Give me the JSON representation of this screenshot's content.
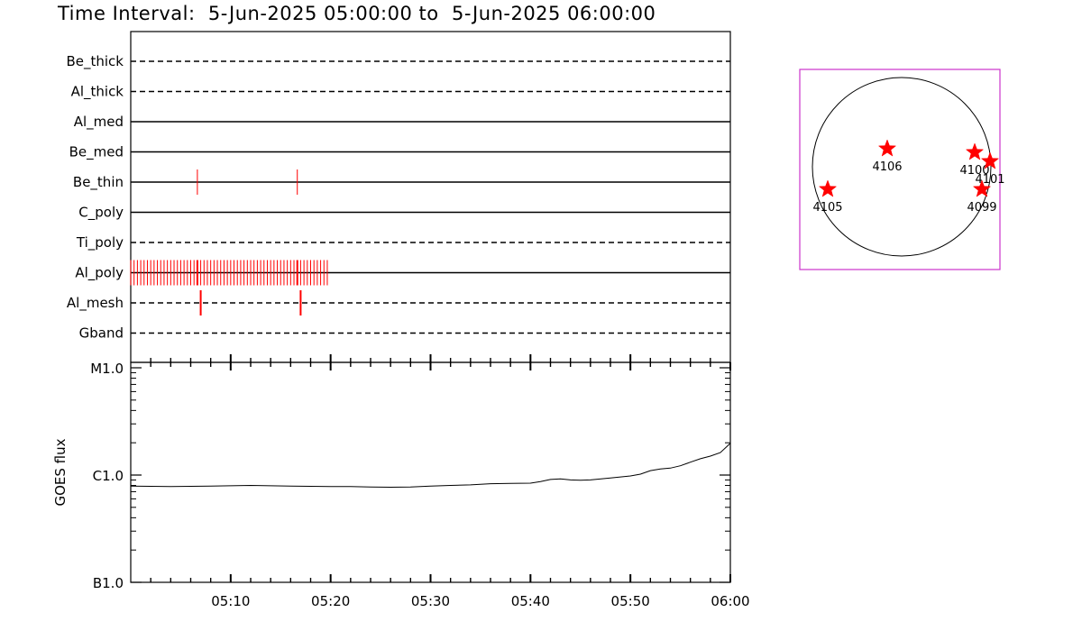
{
  "title": "Time Interval:  5-Jun-2025 05:00:00 to  5-Jun-2025 06:00:00",
  "colors": {
    "events": "#ff0000",
    "axes": "#000000",
    "context_box": "#cc33cc",
    "background": "#ffffff"
  },
  "chart_data": [
    {
      "type": "timeline",
      "x_range": [
        "05:00:00",
        "06:00:00"
      ],
      "rows": [
        {
          "label": "Be_thick",
          "style": "dashed",
          "marks": []
        },
        {
          "label": "Al_thick",
          "style": "dashed",
          "marks": []
        },
        {
          "label": "Al_med",
          "style": "solid",
          "marks": []
        },
        {
          "label": "Be_med",
          "style": "solid",
          "marks": []
        },
        {
          "label": "Be_thin",
          "style": "solid",
          "marks": [
            "05:06:40",
            "05:16:40"
          ]
        },
        {
          "label": "C_poly",
          "style": "solid",
          "marks": []
        },
        {
          "label": "Ti_poly",
          "style": "dashed",
          "marks": []
        },
        {
          "label": "Al_poly",
          "style": "solid",
          "marks": {
            "start": "05:00:00",
            "end": "05:19:50",
            "step_seconds": 20,
            "emphasized": [
              "05:06:40",
              "05:16:40"
            ]
          }
        },
        {
          "label": "Al_mesh",
          "style": "dashed",
          "marks": [
            "05:07:00",
            "05:17:00"
          ]
        },
        {
          "label": "Gband",
          "style": "dashed",
          "marks": []
        }
      ],
      "grid": false
    },
    {
      "type": "line",
      "ylabel": "GOES flux",
      "y_scale": "log",
      "y_ticks": [
        "B1.0",
        "C1.0",
        "M1.0"
      ],
      "y_tick_values": [
        1e-07,
        1e-06,
        1e-05
      ],
      "ylim": [
        1e-07,
        1e-05
      ],
      "x_range": [
        "05:00",
        "06:00"
      ],
      "x_ticks": [
        "05:10",
        "05:20",
        "05:30",
        "05:40",
        "05:50",
        "06:00"
      ],
      "series": [
        {
          "x": [
            "05:00",
            "05:02",
            "05:04",
            "05:06",
            "05:08",
            "05:10",
            "05:12",
            "05:14",
            "05:16",
            "05:18",
            "05:20",
            "05:22",
            "05:24",
            "05:26",
            "05:28",
            "05:30",
            "05:32",
            "05:34",
            "05:36",
            "05:38",
            "05:40",
            "05:41",
            "05:42",
            "05:43",
            "05:44",
            "05:45",
            "05:46",
            "05:48",
            "05:50",
            "05:51",
            "05:52",
            "05:53",
            "05:54",
            "05:55",
            "05:56",
            "05:57",
            "05:58",
            "05:59",
            "06:00"
          ],
          "values": [
            7.9e-07,
            7.85e-07,
            7.8e-07,
            7.85e-07,
            7.9e-07,
            7.95e-07,
            8e-07,
            7.95e-07,
            7.9e-07,
            7.85e-07,
            7.8e-07,
            7.8e-07,
            7.75e-07,
            7.7e-07,
            7.75e-07,
            7.9e-07,
            8e-07,
            8.1e-07,
            8.3e-07,
            8.35e-07,
            8.4e-07,
            8.7e-07,
            9.1e-07,
            9.2e-07,
            9e-07,
            8.95e-07,
            9e-07,
            9.4e-07,
            9.8e-07,
            1.02e-06,
            1.1e-06,
            1.14e-06,
            1.16e-06,
            1.22e-06,
            1.32e-06,
            1.42e-06,
            1.5e-06,
            1.62e-06,
            1.98e-06
          ]
        }
      ]
    },
    {
      "type": "scatter",
      "description_of_panel": "solar disk context map",
      "points": [
        {
          "label": "4106"
        },
        {
          "label": "4100"
        },
        {
          "label": "4101"
        },
        {
          "label": "4105"
        },
        {
          "label": "4099"
        }
      ]
    }
  ]
}
